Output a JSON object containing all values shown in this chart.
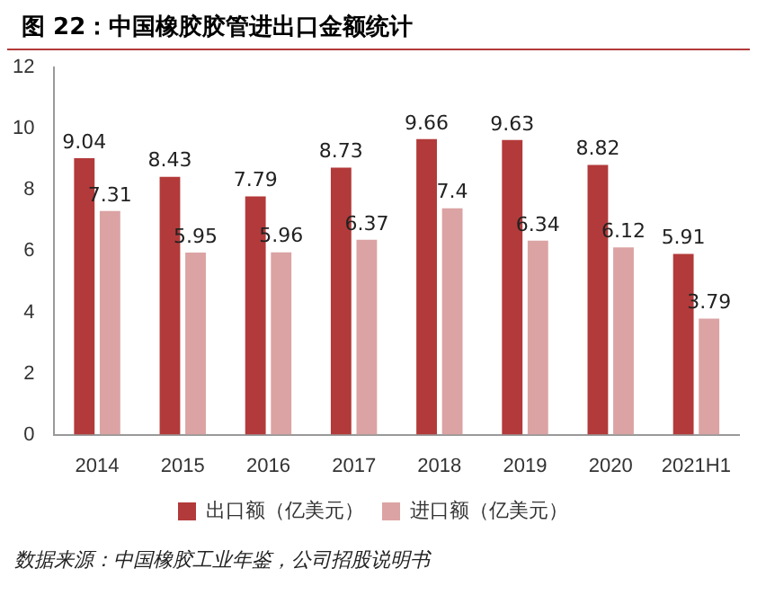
{
  "chart_data": {
    "type": "bar",
    "title": "图 22：中国橡胶胶管进出口金额统计",
    "categories": [
      "2014",
      "2015",
      "2016",
      "2017",
      "2018",
      "2019",
      "2020",
      "2021H1"
    ],
    "series": [
      {
        "name": "出口额（亿美元）",
        "color": "#b33a3a",
        "values": [
          9.04,
          8.43,
          7.79,
          8.73,
          9.66,
          9.63,
          8.82,
          5.91
        ]
      },
      {
        "name": "进口额（亿美元）",
        "color": "#dba3a3",
        "values": [
          7.31,
          5.95,
          5.96,
          6.37,
          7.4,
          6.34,
          6.12,
          3.79
        ]
      }
    ],
    "ylim": [
      0,
      12
    ],
    "yticks": [
      0,
      2,
      4,
      6,
      8,
      10,
      12
    ],
    "grid": false,
    "legend": "bottom",
    "data_labels": true,
    "annotations": [
      "数据来源：中国橡胶工业年鉴，公司招股说明书"
    ]
  }
}
